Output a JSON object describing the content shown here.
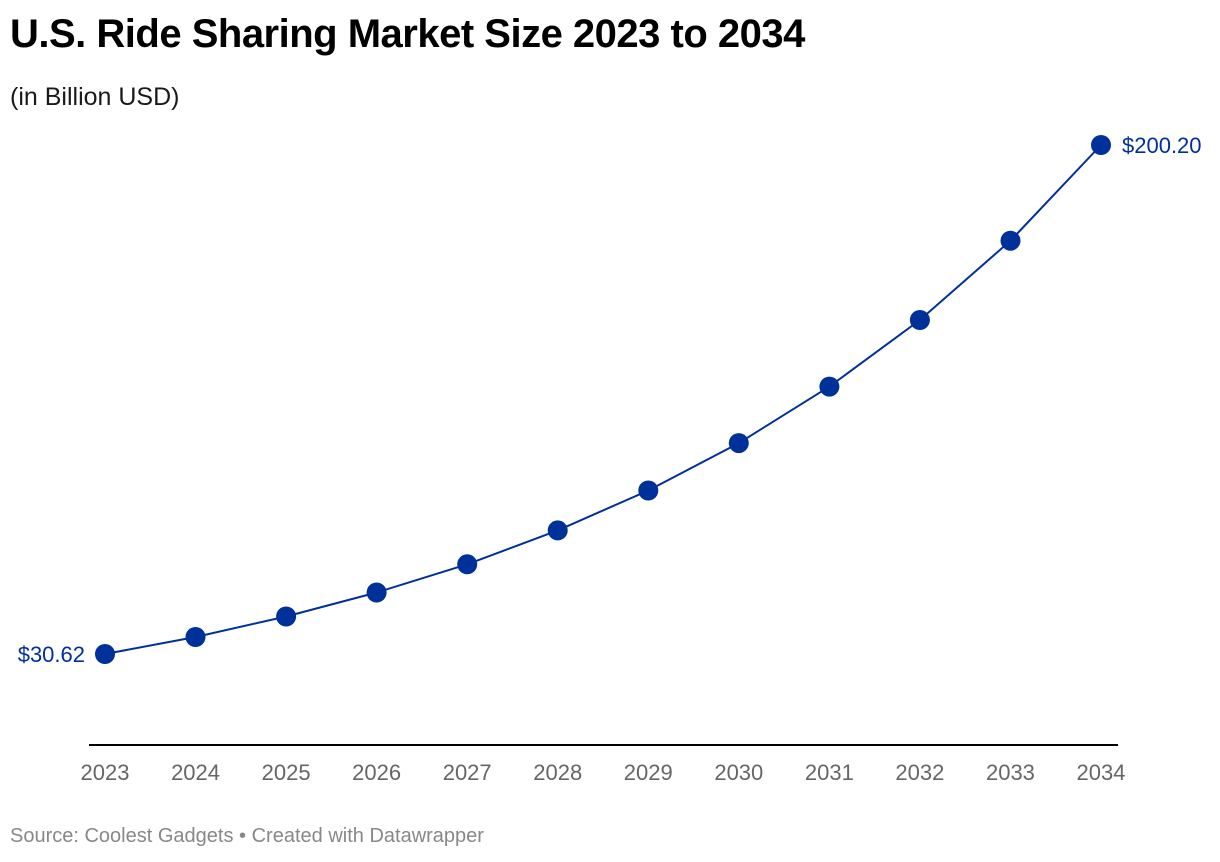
{
  "header": {
    "title": "U.S. Ride Sharing Market Size 2023 to 2034",
    "subtitle": "(in Billion USD)"
  },
  "footer": {
    "source_label": "Source: Coolest Gadgets",
    "separator": "•",
    "credit": "Created with Datawrapper"
  },
  "colors": {
    "series": "#00309a",
    "axis": "#000000",
    "tick_text": "#666666",
    "footer_text": "#888888"
  },
  "chart_data": {
    "type": "line",
    "title": "U.S. Ride Sharing Market Size 2023 to 2034",
    "subtitle": "(in Billion USD)",
    "x": [
      "2023",
      "2024",
      "2025",
      "2026",
      "2027",
      "2028",
      "2029",
      "2030",
      "2031",
      "2032",
      "2033",
      "2034"
    ],
    "series": [
      {
        "values": [
          30.62,
          36.3,
          43.1,
          51.1,
          60.5,
          71.8,
          85.1,
          100.9,
          119.7,
          141.9,
          168.3,
          200.2
        ]
      }
    ],
    "labels": {
      "first": "$30.62",
      "last": "$200.20"
    },
    "ylim": [
      0,
      200.2
    ],
    "markers": true,
    "grid": false
  }
}
